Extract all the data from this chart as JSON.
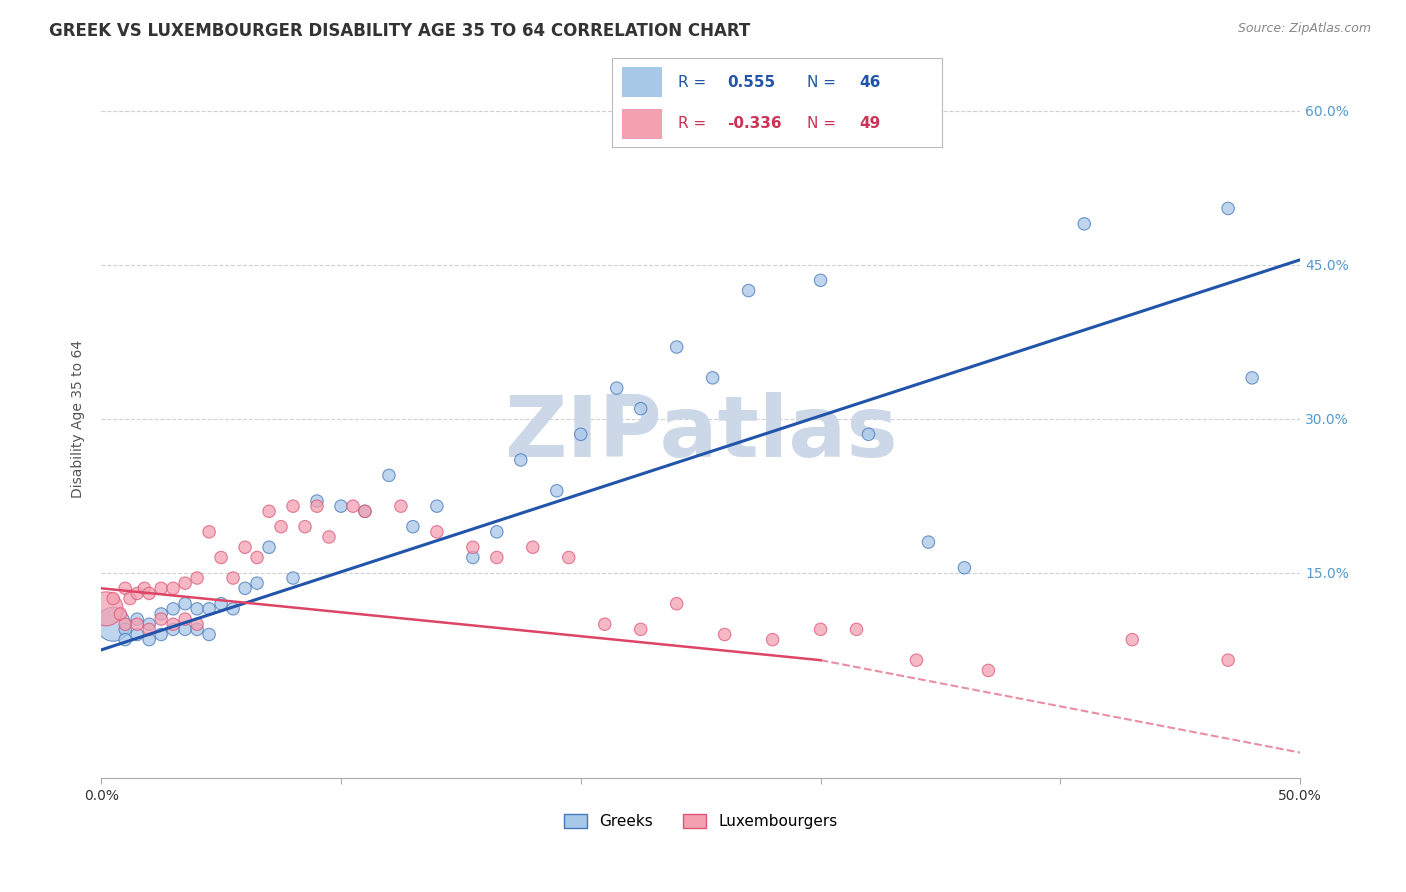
{
  "title": "GREEK VS LUXEMBOURGER DISABILITY AGE 35 TO 64 CORRELATION CHART",
  "source": "Source: ZipAtlas.com",
  "ylabel": "Disability Age 35 to 64",
  "xlim": [
    0.0,
    0.5
  ],
  "ylim": [
    -0.05,
    0.65
  ],
  "yticks": [
    0.15,
    0.3,
    0.45,
    0.6
  ],
  "yticklabels": [
    "15.0%",
    "30.0%",
    "45.0%",
    "60.0%"
  ],
  "legend_R_blue": "0.555",
  "legend_N_blue": "46",
  "legend_R_pink": "-0.336",
  "legend_N_pink": "49",
  "blue_color": "#a8c8e8",
  "pink_color": "#f4a0b0",
  "blue_edge_color": "#4477bb",
  "pink_edge_color": "#dd5577",
  "blue_line_color": "#2255aa",
  "pink_line_color": "#dd4466",
  "watermark_color": "#ccd8e8",
  "background_color": "#ffffff",
  "grid_color": "#cccccc",
  "greek_x": [
    0.005,
    0.01,
    0.01,
    0.015,
    0.015,
    0.02,
    0.02,
    0.025,
    0.025,
    0.03,
    0.03,
    0.035,
    0.035,
    0.04,
    0.04,
    0.045,
    0.045,
    0.05,
    0.055,
    0.06,
    0.065,
    0.07,
    0.08,
    0.09,
    0.1,
    0.11,
    0.12,
    0.13,
    0.14,
    0.155,
    0.165,
    0.175,
    0.19,
    0.2,
    0.215,
    0.225,
    0.24,
    0.255,
    0.27,
    0.3,
    0.32,
    0.345,
    0.36,
    0.41,
    0.47,
    0.48
  ],
  "greek_y": [
    0.1,
    0.095,
    0.085,
    0.105,
    0.09,
    0.1,
    0.085,
    0.11,
    0.09,
    0.115,
    0.095,
    0.12,
    0.095,
    0.115,
    0.095,
    0.115,
    0.09,
    0.12,
    0.115,
    0.135,
    0.14,
    0.175,
    0.145,
    0.22,
    0.215,
    0.21,
    0.245,
    0.195,
    0.215,
    0.165,
    0.19,
    0.26,
    0.23,
    0.285,
    0.33,
    0.31,
    0.37,
    0.34,
    0.425,
    0.435,
    0.285,
    0.18,
    0.155,
    0.49,
    0.505,
    0.34
  ],
  "greek_sizes_large": [
    0
  ],
  "lux_x": [
    0.002,
    0.005,
    0.008,
    0.01,
    0.01,
    0.012,
    0.015,
    0.015,
    0.018,
    0.02,
    0.02,
    0.025,
    0.025,
    0.03,
    0.03,
    0.035,
    0.035,
    0.04,
    0.04,
    0.045,
    0.05,
    0.055,
    0.06,
    0.065,
    0.07,
    0.075,
    0.08,
    0.085,
    0.09,
    0.095,
    0.105,
    0.11,
    0.125,
    0.14,
    0.155,
    0.165,
    0.18,
    0.195,
    0.21,
    0.225,
    0.24,
    0.26,
    0.28,
    0.3,
    0.315,
    0.34,
    0.37,
    0.43,
    0.47
  ],
  "lux_y": [
    0.115,
    0.125,
    0.11,
    0.135,
    0.1,
    0.125,
    0.13,
    0.1,
    0.135,
    0.13,
    0.095,
    0.135,
    0.105,
    0.135,
    0.1,
    0.14,
    0.105,
    0.145,
    0.1,
    0.19,
    0.165,
    0.145,
    0.175,
    0.165,
    0.21,
    0.195,
    0.215,
    0.195,
    0.215,
    0.185,
    0.215,
    0.21,
    0.215,
    0.19,
    0.175,
    0.165,
    0.175,
    0.165,
    0.1,
    0.095,
    0.12,
    0.09,
    0.085,
    0.095,
    0.095,
    0.065,
    0.055,
    0.085,
    0.065
  ],
  "blue_line": [
    0.0,
    0.5,
    0.075,
    0.455
  ],
  "pink_line_solid": [
    0.0,
    0.3,
    0.135,
    0.065
  ],
  "pink_line_dash": [
    0.3,
    0.5,
    0.065,
    -0.025
  ],
  "title_fontsize": 12,
  "source_fontsize": 9,
  "tick_fontsize": 10,
  "ylabel_fontsize": 10
}
